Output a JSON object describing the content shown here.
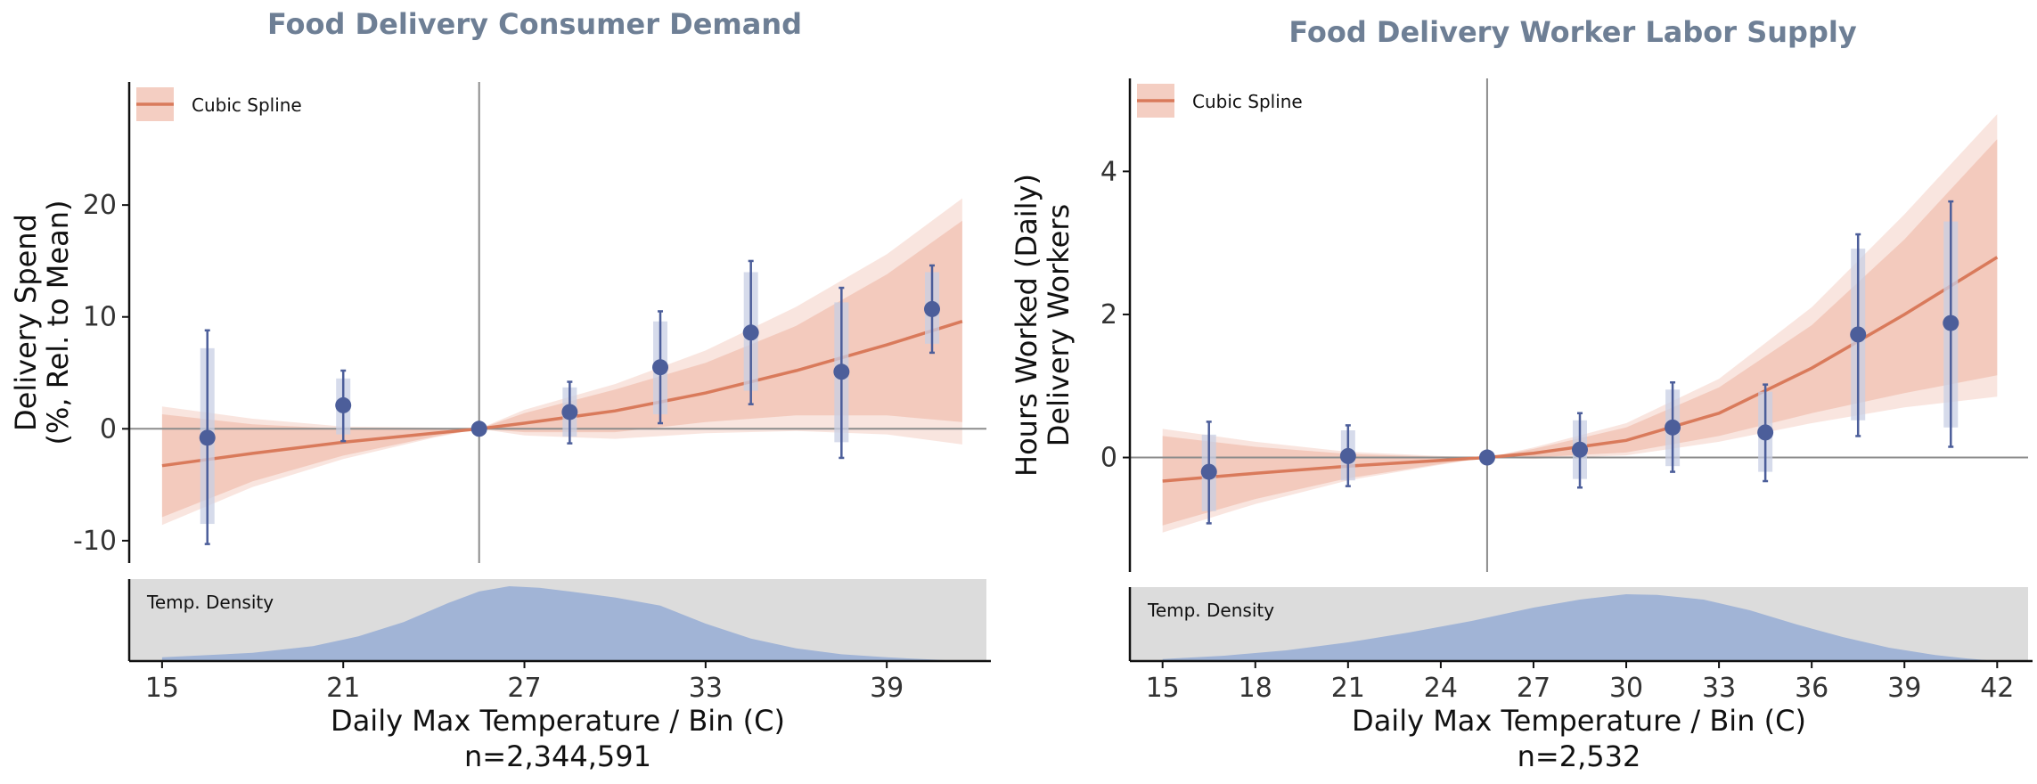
{
  "chart_data": [
    {
      "type": "line",
      "title": "Food Delivery Consumer Demand",
      "ylabel": [
        "Delivery Spend",
        "(%, Rel. to Mean)"
      ],
      "xlabel": "Daily Max Temperature / Bin (C)",
      "note": "n=2,344,591",
      "xlim": [
        14.0,
        42.3
      ],
      "ylim": [
        -12,
        31
      ],
      "x_ticks": [
        15,
        21,
        27,
        33,
        39
      ],
      "y_ticks": [
        -10,
        0,
        10,
        20
      ],
      "reference_x": 25.5,
      "legend": {
        "label": "Cubic Spline",
        "position": "top-left"
      },
      "density_label": "Temp. Density",
      "series": [
        {
          "name": "Cubic Spline",
          "x": [
            15.0,
            18,
            21,
            24,
            25.5,
            27,
            30,
            33,
            36,
            39,
            41.5
          ],
          "y": [
            -3.3,
            -2.2,
            -1.2,
            -0.4,
            0,
            0.5,
            1.6,
            3.2,
            5.2,
            7.5,
            9.6
          ],
          "ci_outer_low": [
            -8.6,
            -5.2,
            -2.7,
            -0.8,
            0,
            -0.6,
            -0.9,
            -0.4,
            -0.2,
            -0.5,
            -1.4
          ],
          "ci_outer_high": [
            2.0,
            0.9,
            0.2,
            0.1,
            0,
            1.7,
            4.0,
            7.0,
            10.9,
            15.6,
            20.6
          ],
          "ci_inner_low": [
            -7.9,
            -4.7,
            -2.4,
            -0.7,
            0,
            -0.3,
            -0.3,
            0.6,
            1.2,
            1.2,
            0.6
          ],
          "ci_inner_high": [
            1.3,
            0.4,
            0.0,
            0.0,
            0,
            1.4,
            3.5,
            5.9,
            9.2,
            13.8,
            18.6
          ]
        },
        {
          "name": "Bin estimates",
          "x": [
            16.5,
            21,
            25.5,
            28.5,
            31.5,
            34.5,
            37.5,
            40.5
          ],
          "y": [
            -0.8,
            2.1,
            0,
            1.5,
            5.5,
            8.6,
            5.1,
            10.7
          ],
          "ci_low": [
            -10.3,
            -1.1,
            0,
            -1.3,
            0.5,
            2.2,
            -2.6,
            6.8
          ],
          "ci_high": [
            8.8,
            5.2,
            0,
            4.2,
            10.5,
            15.0,
            12.6,
            14.6
          ],
          "bar_low": [
            -8.5,
            -0.5,
            0,
            -0.7,
            1.3,
            3.4,
            -1.2,
            7.6
          ],
          "bar_high": [
            7.2,
            4.5,
            0,
            3.7,
            9.6,
            14.0,
            11.3,
            14.0
          ]
        }
      ],
      "density": {
        "x": [
          15,
          16,
          18,
          20,
          21.5,
          23,
          24.5,
          25.5,
          26.5,
          27.5,
          28.5,
          30,
          31.5,
          33,
          34.5,
          36,
          37.5,
          39,
          40.5,
          41.5
        ],
        "y": [
          0.05,
          0.07,
          0.11,
          0.2,
          0.33,
          0.52,
          0.78,
          0.93,
          1.0,
          0.98,
          0.93,
          0.85,
          0.74,
          0.5,
          0.3,
          0.17,
          0.09,
          0.05,
          0.02,
          0.0
        ]
      },
      "colors": {
        "spline": "#d97a5b",
        "band": "#f2c5b7",
        "point": "#4c5e9a",
        "bar": "#c8cfe4",
        "density": "#a1b4d6",
        "density_bg": "#dcdcdc"
      }
    },
    {
      "type": "line",
      "title": "Food Delivery Worker Labor Supply",
      "ylabel": [
        "Hours Worked (Daily)",
        "Delivery Workers"
      ],
      "xlabel": "Daily Max Temperature / Bin (C)",
      "note": "n=2,532",
      "xlim": [
        14.0,
        43.0
      ],
      "ylim": [
        -1.6,
        5.3
      ],
      "x_ticks": [
        15,
        18,
        21,
        24,
        27,
        30,
        33,
        36,
        39,
        42
      ],
      "y_ticks": [
        0,
        2,
        4
      ],
      "reference_x": 25.5,
      "legend": {
        "label": "Cubic Spline",
        "position": "top-left"
      },
      "density_label": "Temp. Density",
      "series": [
        {
          "name": "Cubic Spline",
          "x": [
            15.0,
            18,
            21,
            24,
            25.5,
            27,
            30,
            33,
            36,
            39,
            42
          ],
          "y": [
            -0.33,
            -0.22,
            -0.12,
            -0.04,
            0,
            0.06,
            0.24,
            0.62,
            1.25,
            2.0,
            2.8
          ],
          "ci_outer_low": [
            -1.05,
            -0.65,
            -0.32,
            -0.1,
            0,
            -0.02,
            0.03,
            0.22,
            0.48,
            0.7,
            0.85
          ],
          "ci_outer_high": [
            0.4,
            0.22,
            0.08,
            0.02,
            0,
            0.14,
            0.48,
            1.1,
            2.1,
            3.4,
            4.8
          ],
          "ci_inner_low": [
            -0.95,
            -0.58,
            -0.29,
            -0.09,
            0,
            0.0,
            0.07,
            0.3,
            0.62,
            0.9,
            1.15
          ],
          "ci_inner_high": [
            0.3,
            0.15,
            0.05,
            0.01,
            0,
            0.12,
            0.42,
            0.98,
            1.85,
            3.05,
            4.45
          ]
        },
        {
          "name": "Bin estimates",
          "x": [
            16.5,
            21,
            25.5,
            28.5,
            31.5,
            34.5,
            37.5,
            40.5
          ],
          "y": [
            -0.2,
            0.02,
            0,
            0.11,
            0.42,
            0.35,
            1.72,
            1.88
          ],
          "ci_low": [
            -0.92,
            -0.4,
            0,
            -0.42,
            -0.2,
            -0.33,
            0.3,
            0.15
          ],
          "ci_high": [
            0.5,
            0.45,
            0,
            0.62,
            1.05,
            1.02,
            3.12,
            3.58
          ],
          "bar_low": [
            -0.75,
            -0.32,
            0,
            -0.3,
            -0.12,
            -0.2,
            0.52,
            0.42
          ],
          "bar_high": [
            0.32,
            0.38,
            0,
            0.52,
            0.95,
            0.92,
            2.92,
            3.3
          ]
        }
      ],
      "density": {
        "x": [
          15,
          17,
          19,
          21,
          23,
          25,
          27,
          28.5,
          30,
          31,
          32.5,
          34,
          35.5,
          37,
          38.5,
          40,
          41,
          42
        ],
        "y": [
          0.03,
          0.08,
          0.16,
          0.28,
          0.43,
          0.6,
          0.8,
          0.92,
          1.0,
          0.99,
          0.92,
          0.76,
          0.55,
          0.36,
          0.2,
          0.09,
          0.04,
          0.0
        ]
      },
      "colors": {
        "spline": "#d97a5b",
        "band": "#f2c5b7",
        "point": "#4c5e9a",
        "bar": "#c8cfe4",
        "density": "#a1b4d6",
        "density_bg": "#dcdcdc"
      }
    }
  ]
}
